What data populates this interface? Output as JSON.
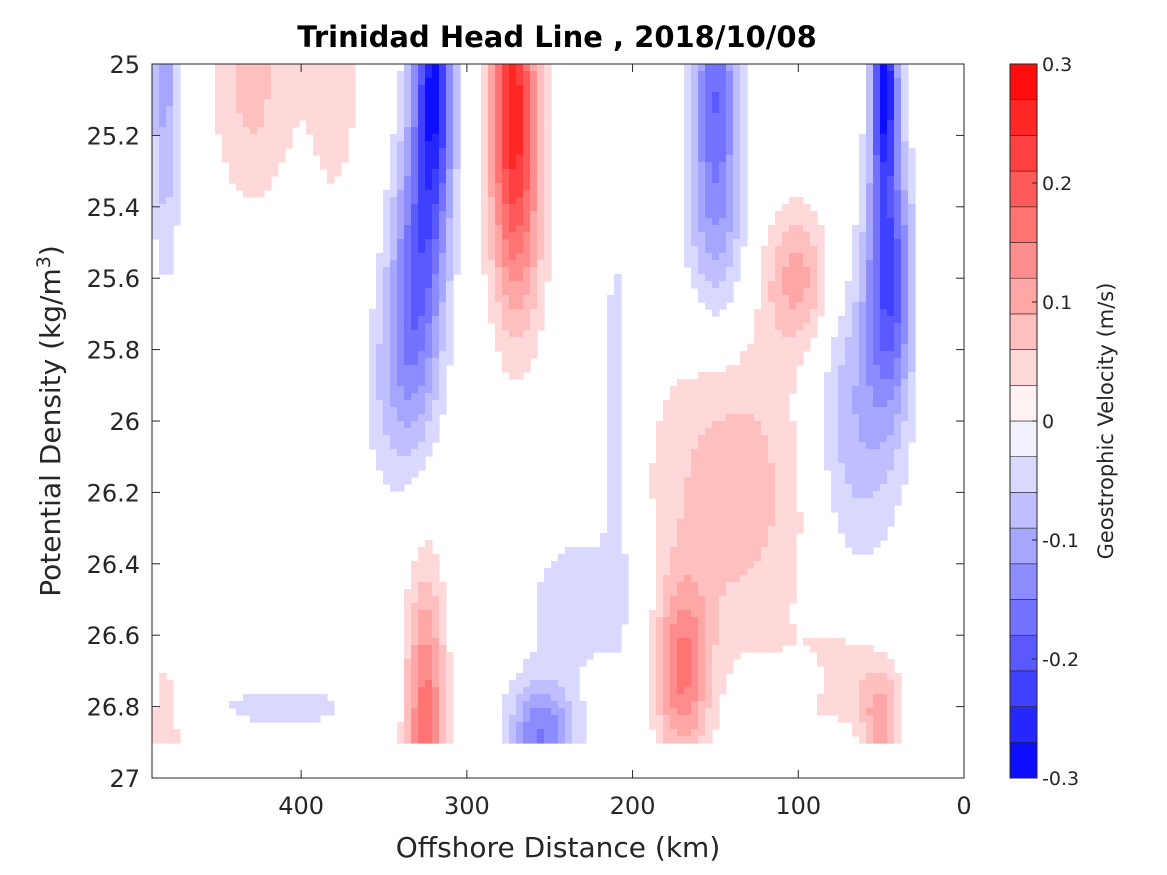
{
  "chart_data": {
    "type": "heatmap",
    "subtype": "filled-contour",
    "title": "Trinidad Head Line , 2018/10/08",
    "xlabel": "Offshore Distance (km)",
    "ylabel_main": "Potential Density (kg/m",
    "ylabel_sup": "3",
    "ylabel_close": ")",
    "xlim": [
      490,
      0
    ],
    "x_reversed": true,
    "ylim": [
      25,
      27
    ],
    "y_reversed": true,
    "x_ticks": [
      400,
      300,
      200,
      100,
      0
    ],
    "y_ticks": [
      25,
      25.2,
      25.4,
      25.6,
      25.8,
      26,
      26.2,
      26.4,
      26.6,
      26.8,
      27
    ],
    "x_tick_labels": [
      "400",
      "300",
      "200",
      "100",
      "0"
    ],
    "y_tick_labels": [
      "25",
      "25.2",
      "25.4",
      "25.6",
      "25.8",
      "26",
      "26.2",
      "26.4",
      "26.6",
      "26.8",
      "27"
    ],
    "colorbar": {
      "label": "Geostrophic Velocity (m/s)",
      "clim": [
        -0.3,
        0.3
      ],
      "levels": 20,
      "step": 0.03,
      "ticks": [
        -0.3,
        -0.2,
        -0.1,
        0,
        0.1,
        0.2,
        0.3
      ],
      "tick_labels": [
        "-0.3",
        "-0.2",
        "-0.1",
        "0",
        "0.1",
        "0.2",
        "0.3"
      ],
      "colormap": "blue-white-red",
      "negative_color": "#0000ff",
      "zero_color": "#ffffff",
      "positive_color": "#ff0000"
    },
    "data_extent": {
      "x": [
        30,
        490
      ],
      "y_max": 26.9
    },
    "features": [
      {
        "x": 482,
        "y": 25.05,
        "v": -0.1,
        "sx": 9,
        "sy": 0.5
      },
      {
        "x": 482,
        "y": 26.9,
        "v": 0.06,
        "sx": 10,
        "sy": 0.25
      },
      {
        "x": 430,
        "y": 25.05,
        "v": 0.07,
        "sx": 24,
        "sy": 0.35
      },
      {
        "x": 380,
        "y": 25.05,
        "v": 0.04,
        "sx": 22,
        "sy": 0.5
      },
      {
        "x": 320,
        "y": 25.05,
        "v": -0.27,
        "sx": 12,
        "sy": 0.4
      },
      {
        "x": 330,
        "y": 25.6,
        "v": -0.17,
        "sx": 16,
        "sy": 0.4
      },
      {
        "x": 345,
        "y": 25.9,
        "v": -0.06,
        "sx": 18,
        "sy": 0.3
      },
      {
        "x": 410,
        "y": 26.8,
        "v": -0.04,
        "sx": 60,
        "sy": 0.08
      },
      {
        "x": 325,
        "y": 26.9,
        "v": 0.18,
        "sx": 12,
        "sy": 0.45
      },
      {
        "x": 272,
        "y": 25.05,
        "v": 0.22,
        "sx": 14,
        "sy": 0.35
      },
      {
        "x": 270,
        "y": 25.45,
        "v": 0.13,
        "sx": 16,
        "sy": 0.35
      },
      {
        "x": 255,
        "y": 26.88,
        "v": -0.15,
        "sx": 20,
        "sy": 0.15
      },
      {
        "x": 230,
        "y": 26.5,
        "v": -0.05,
        "sx": 38,
        "sy": 0.22
      },
      {
        "x": 210,
        "y": 25.95,
        "v": -0.05,
        "sx": 9,
        "sy": 0.55
      },
      {
        "x": 150,
        "y": 25.05,
        "v": -0.16,
        "sx": 14,
        "sy": 0.3
      },
      {
        "x": 150,
        "y": 25.45,
        "v": -0.1,
        "sx": 18,
        "sy": 0.3
      },
      {
        "x": 170,
        "y": 26.7,
        "v": 0.15,
        "sx": 16,
        "sy": 0.25
      },
      {
        "x": 140,
        "y": 26.2,
        "v": 0.08,
        "sx": 50,
        "sy": 0.45
      },
      {
        "x": 100,
        "y": 25.6,
        "v": 0.1,
        "sx": 20,
        "sy": 0.2
      },
      {
        "x": 95,
        "y": 26.72,
        "v": -0.05,
        "sx": 10,
        "sy": 0.06
      },
      {
        "x": 48,
        "y": 25.05,
        "v": -0.28,
        "sx": 8,
        "sy": 0.3
      },
      {
        "x": 45,
        "y": 25.6,
        "v": -0.2,
        "sx": 14,
        "sy": 0.35
      },
      {
        "x": 65,
        "y": 26.0,
        "v": -0.09,
        "sx": 26,
        "sy": 0.4
      },
      {
        "x": 50,
        "y": 26.85,
        "v": 0.1,
        "sx": 12,
        "sy": 0.15
      },
      {
        "x": 75,
        "y": 26.72,
        "v": 0.05,
        "sx": 30,
        "sy": 0.15
      }
    ]
  }
}
